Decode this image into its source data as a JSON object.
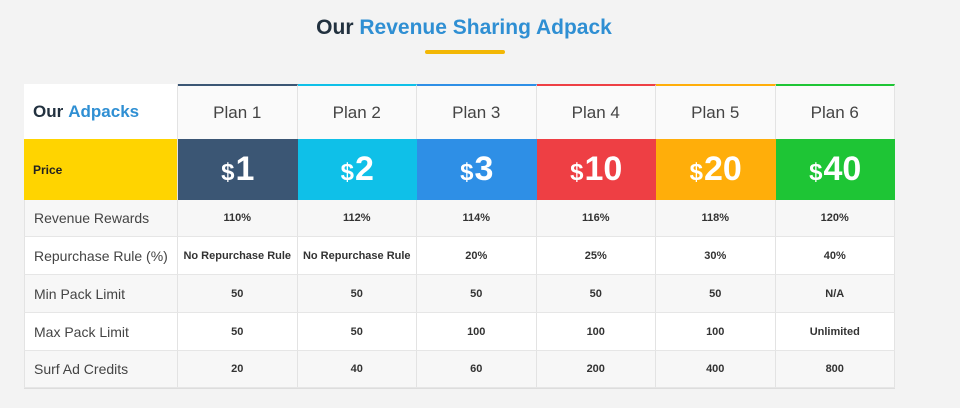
{
  "heading": {
    "prefix": "Our",
    "accent": "Revenue Sharing Adpack"
  },
  "table_header": {
    "prefix": "Our",
    "accent": "Adpacks"
  },
  "colors": {
    "heading_accent": "#2f8fd3",
    "underline": "#f2b705",
    "price_label_bg": "#ffd400",
    "plan_colors": [
      "#3b5674",
      "#0fc0e8",
      "#2e8fe6",
      "#ee3f44",
      "#ffae0a",
      "#1ec535"
    ]
  },
  "plans": [
    {
      "name": "Plan 1",
      "currency": "$",
      "price": "1"
    },
    {
      "name": "Plan 2",
      "currency": "$",
      "price": "2"
    },
    {
      "name": "Plan 3",
      "currency": "$",
      "price": "3"
    },
    {
      "name": "Plan 4",
      "currency": "$",
      "price": "10"
    },
    {
      "name": "Plan 5",
      "currency": "$",
      "price": "20"
    },
    {
      "name": "Plan 6",
      "currency": "$",
      "price": "40"
    }
  ],
  "price_label": "Price",
  "rows": [
    {
      "label": "Revenue Rewards",
      "values": [
        "110%",
        "112%",
        "114%",
        "116%",
        "118%",
        "120%"
      ]
    },
    {
      "label": "Repurchase Rule (%)",
      "values": [
        "No Repurchase Rule",
        "No Repurchase Rule",
        "20%",
        "25%",
        "30%",
        "40%"
      ]
    },
    {
      "label": "Min Pack Limit",
      "values": [
        "50",
        "50",
        "50",
        "50",
        "50",
        "N/A"
      ]
    },
    {
      "label": "Max Pack Limit",
      "values": [
        "50",
        "50",
        "100",
        "100",
        "100",
        "Unlimited"
      ]
    },
    {
      "label": "Surf Ad Credits",
      "values": [
        "20",
        "40",
        "60",
        "200",
        "400",
        "800"
      ]
    }
  ]
}
